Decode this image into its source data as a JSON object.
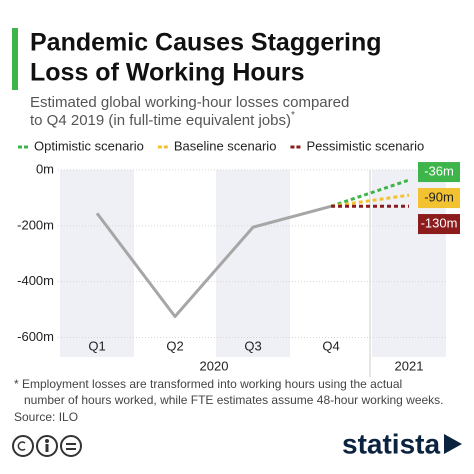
{
  "chart_data": {
    "type": "line",
    "title_lines": [
      "Pandemic Causes Staggering",
      "Loss of Working Hours"
    ],
    "subtitle_lines": [
      "Estimated global working-hour losses compared",
      "to Q4 2019 (in full-time equivalent jobs)"
    ],
    "subtitle_note": "*",
    "categories": [
      "Q1",
      "Q2",
      "Q3",
      "Q4",
      null
    ],
    "year_labels": [
      "2020",
      "2021"
    ],
    "values": [
      -155,
      -525,
      -205,
      -130,
      null
    ],
    "color": "#a6a6a6",
    "series": [
      {
        "name": "Optimistic scenario",
        "color": "#3db54a",
        "values": [
          null,
          null,
          null,
          -130,
          -36
        ],
        "value_labels": [
          null,
          null,
          null,
          null,
          "-36m"
        ]
      },
      {
        "name": "Baseline scenario",
        "color": "#f2c230",
        "values": [
          null,
          null,
          null,
          -130,
          -90
        ],
        "value_labels": [
          null,
          null,
          null,
          null,
          "-90m"
        ]
      },
      {
        "name": "Pessimistic scenario",
        "color": "#8c1c1c",
        "values": [
          null,
          null,
          null,
          -130,
          -130
        ],
        "value_labels": [
          null,
          null,
          null,
          null,
          "-130m"
        ]
      }
    ],
    "ylim": [
      -670,
      0
    ],
    "yticks": [
      {
        "value": 0,
        "label": "0m"
      },
      {
        "value": -200,
        "label": "-200m"
      },
      {
        "value": -400,
        "label": "-400m"
      },
      {
        "value": -600,
        "label": "-600m"
      }
    ],
    "grid": true,
    "footnote_lines": [
      "* Employment losses are transformed into working hours using the actual",
      "number of hours worked, while FTE estimates assume 48-hour working weeks."
    ],
    "source": "Source: ILO",
    "brand": "statista"
  }
}
